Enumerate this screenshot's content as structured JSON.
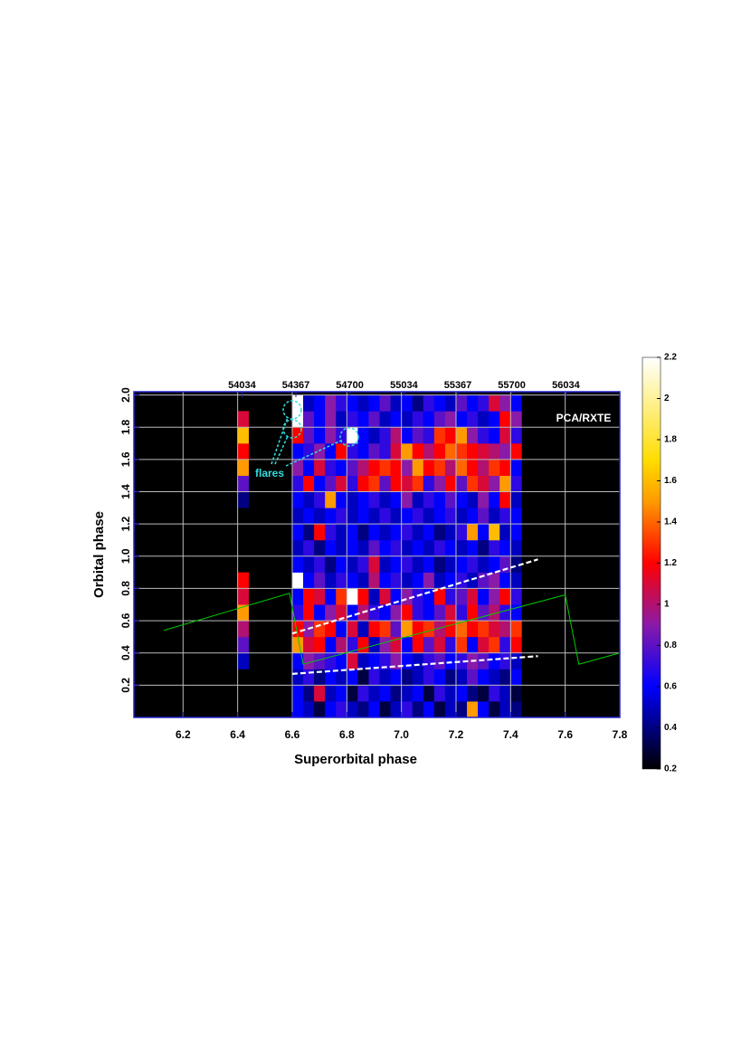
{
  "chart_data": {
    "type": "heatmap",
    "xlabel": "Superorbital phase",
    "ylabel": "Orbital phase",
    "xlim": [
      6.02,
      7.8
    ],
    "ylim": [
      0,
      2.02
    ],
    "xticks": [
      6.2,
      6.4,
      6.6,
      6.8,
      {
        "value": 7,
        "label": "7.0"
      },
      7.2,
      7.4,
      7.6,
      7.8
    ],
    "yticks": [
      0.2,
      0.4,
      0.6,
      0.8,
      {
        "value": 1,
        "label": "1.0"
      },
      1.2,
      1.4,
      1.6,
      1.8,
      {
        "value": 2,
        "label": "2.0"
      }
    ],
    "x2lim": [
      53367,
      56367
    ],
    "x2ticks": [
      54034,
      54367,
      54700,
      55034,
      55367,
      55700,
      56034
    ],
    "grid": true,
    "x_edges": [
      6.4,
      6.44,
      6.6,
      6.64,
      6.68,
      6.72,
      6.76,
      6.8,
      6.84,
      6.88,
      6.92,
      6.96,
      7.0,
      7.04,
      7.08,
      7.12,
      7.16,
      7.2,
      7.24,
      7.28,
      7.32,
      7.36,
      7.4,
      7.44
    ],
    "y_edges": [
      0,
      0.1,
      0.2,
      0.3,
      0.4,
      0.5,
      0.6,
      0.7,
      0.8,
      0.9,
      1.0,
      1.1,
      1.2,
      1.3,
      1.4,
      1.5,
      1.6,
      1.7,
      1.8,
      1.9,
      2.0
    ],
    "z": [
      [
        null,
        null,
        0.6,
        0.5,
        0.3,
        0.6,
        0.7,
        0.5,
        0.4,
        0.6,
        0.3,
        0.5,
        0.7,
        0.4,
        0.6,
        0.3,
        0.5,
        0.4,
        1.5,
        0.6,
        0.3,
        0.5,
        0.4
      ],
      [
        null,
        null,
        0.6,
        0.4,
        1.1,
        0.5,
        0.6,
        0.3,
        0.7,
        0.5,
        0.6,
        0.4,
        0.5,
        0.6,
        0.3,
        0.7,
        0.5,
        0.6,
        0.4,
        0.3,
        0.7,
        0.5,
        0.3
      ],
      [
        null,
        null,
        0.5,
        0.7,
        0.4,
        0.6,
        0.5,
        0.6,
        0.3,
        0.7,
        0.5,
        0.6,
        0.4,
        0.5,
        0.7,
        0.6,
        0.4,
        0.5,
        0.8,
        0.6,
        0.5,
        0.4,
        0.6
      ],
      [
        0.5,
        null,
        0.6,
        0.9,
        0.8,
        0.7,
        0.6,
        1.1,
        0.5,
        0.6,
        0.7,
        0.9,
        0.6,
        0.5,
        0.7,
        0.8,
        0.6,
        0.7,
        0.9,
        0.8,
        0.6,
        0.7,
        0.5
      ],
      [
        0.8,
        null,
        1.5,
        1.1,
        1.2,
        0.6,
        1.0,
        0.7,
        1.2,
        0.5,
        0.9,
        1.1,
        0.6,
        1.2,
        0.8,
        1.1,
        0.7,
        1.3,
        0.6,
        1.1,
        1.3,
        0.7,
        1.2
      ],
      [
        1.0,
        null,
        1.2,
        0.9,
        1.3,
        1.2,
        0.6,
        1.1,
        0.5,
        1.2,
        1.3,
        0.8,
        1.5,
        1.2,
        1.3,
        1.0,
        1.2,
        1.4,
        1.2,
        1.3,
        1.1,
        1.0,
        1.3
      ],
      [
        1.5,
        null,
        0.7,
        1.2,
        0.6,
        0.9,
        1.1,
        0.6,
        1.0,
        0.7,
        0.6,
        0.9,
        1.2,
        0.7,
        0.6,
        0.8,
        1.1,
        0.7,
        1.2,
        0.8,
        1.0,
        0.7,
        0.6
      ],
      [
        1.1,
        null,
        0.6,
        1.2,
        1.1,
        0.6,
        1.3,
        2.2,
        1.2,
        0.5,
        1.1,
        0.6,
        0.9,
        0.7,
        0.6,
        1.2,
        0.7,
        0.8,
        1.1,
        0.6,
        0.9,
        1.2,
        0.7
      ],
      [
        1.2,
        null,
        2.2,
        0.6,
        0.8,
        0.5,
        0.7,
        0.6,
        0.5,
        1.0,
        0.6,
        0.7,
        0.5,
        0.6,
        0.9,
        0.5,
        0.6,
        0.7,
        0.5,
        0.8,
        0.9,
        0.6,
        0.5
      ],
      [
        null,
        null,
        0.6,
        0.5,
        0.7,
        0.4,
        0.6,
        0.5,
        0.7,
        1.1,
        0.5,
        0.6,
        0.7,
        0.5,
        0.6,
        0.4,
        0.5,
        0.6,
        0.7,
        0.5,
        0.6,
        0.8,
        0.4
      ],
      [
        null,
        null,
        0.5,
        0.7,
        0.4,
        0.6,
        0.5,
        0.6,
        0.5,
        0.8,
        0.6,
        0.7,
        0.5,
        0.6,
        0.5,
        0.7,
        0.6,
        0.5,
        0.6,
        0.4,
        0.7,
        0.6,
        0.5
      ],
      [
        null,
        null,
        0.6,
        0.4,
        1.2,
        0.7,
        0.5,
        0.6,
        0.4,
        0.6,
        0.5,
        0.6,
        0.7,
        0.5,
        0.6,
        0.4,
        0.5,
        0.7,
        1.5,
        0.6,
        1.6,
        0.5,
        0.6
      ],
      [
        null,
        null,
        0.5,
        0.6,
        0.5,
        0.6,
        0.7,
        0.5,
        0.6,
        0.5,
        0.7,
        0.5,
        0.6,
        0.7,
        0.5,
        0.6,
        0.7,
        0.5,
        0.6,
        0.8,
        0.5,
        0.7,
        0.6
      ],
      [
        0.4,
        null,
        0.6,
        0.5,
        0.7,
        1.5,
        0.6,
        0.5,
        0.6,
        0.7,
        0.5,
        0.6,
        0.9,
        0.5,
        0.7,
        0.6,
        0.8,
        0.6,
        0.5,
        0.9,
        0.6,
        1.2,
        0.5
      ],
      [
        0.8,
        null,
        0.7,
        1.2,
        0.6,
        0.8,
        1.1,
        0.7,
        1.2,
        1.3,
        0.8,
        1.2,
        1.1,
        1.3,
        0.7,
        0.9,
        1.2,
        0.8,
        1.3,
        1.1,
        0.9,
        1.5,
        0.7
      ],
      [
        1.5,
        null,
        0.9,
        0.6,
        1.1,
        0.7,
        0.6,
        0.8,
        1.0,
        1.2,
        1.3,
        1.2,
        0.9,
        1.5,
        1.2,
        1.3,
        1.0,
        1.4,
        1.2,
        1.0,
        1.3,
        1.2,
        0.6
      ],
      [
        1.2,
        null,
        0.6,
        0.7,
        0.9,
        0.6,
        1.2,
        0.7,
        0.6,
        0.8,
        0.7,
        1.1,
        1.5,
        1.2,
        1.0,
        1.2,
        1.4,
        1.3,
        1.2,
        1.1,
        1.0,
        0.9,
        1.2
      ],
      [
        1.6,
        null,
        1.2,
        0.8,
        0.6,
        0.9,
        0.7,
        2.2,
        0.6,
        0.5,
        0.7,
        1.0,
        0.6,
        0.8,
        0.7,
        1.3,
        1.2,
        1.5,
        0.9,
        0.7,
        0.6,
        1.1,
        0.7
      ],
      [
        1.1,
        null,
        2.2,
        0.8,
        0.6,
        0.9,
        0.5,
        0.7,
        0.6,
        0.8,
        0.5,
        0.6,
        0.5,
        0.7,
        0.6,
        0.8,
        0.9,
        0.6,
        0.7,
        0.5,
        0.6,
        1.2,
        0.9
      ],
      [
        null,
        null,
        2.2,
        0.5,
        0.6,
        0.9,
        0.7,
        0.6,
        0.5,
        0.6,
        0.8,
        0.5,
        0.6,
        0.4,
        0.7,
        0.6,
        0.5,
        0.8,
        0.6,
        0.7,
        1.1,
        0.9,
        0.6
      ]
    ],
    "colorscale": [
      [
        0.2,
        "#000000"
      ],
      [
        0.6,
        "#0000ff"
      ],
      [
        0.9,
        "#8a1aa8"
      ],
      [
        1.2,
        "#ff0000"
      ],
      [
        1.5,
        "#ff9a00"
      ],
      [
        1.7,
        "#ffdd00"
      ],
      [
        2.2,
        "#ffffff"
      ]
    ],
    "colorbar_lim": [
      0.2,
      2.2
    ],
    "colorbar_ticks": [
      0.2,
      0.4,
      0.6,
      0.8,
      1,
      1.2,
      1.4,
      1.6,
      1.8,
      2,
      2.2
    ],
    "lines": [
      {
        "color": "#ffffff",
        "dash": true,
        "x": [
          6.6,
          7.5
        ],
        "y": [
          0.52,
          0.98
        ]
      },
      {
        "color": "#ffffff",
        "dash": true,
        "x": [
          6.6,
          7.5
        ],
        "y": [
          0.27,
          0.38
        ]
      },
      {
        "color": "#00cc00",
        "dash": false,
        "x": [
          6.13,
          6.59,
          6.64,
          7.6,
          7.65,
          7.8
        ],
        "y": [
          0.54,
          0.77,
          0.33,
          0.76,
          0.33,
          0.4
        ]
      }
    ],
    "annotations": [
      "PCA/RXTE",
      "flares"
    ]
  }
}
